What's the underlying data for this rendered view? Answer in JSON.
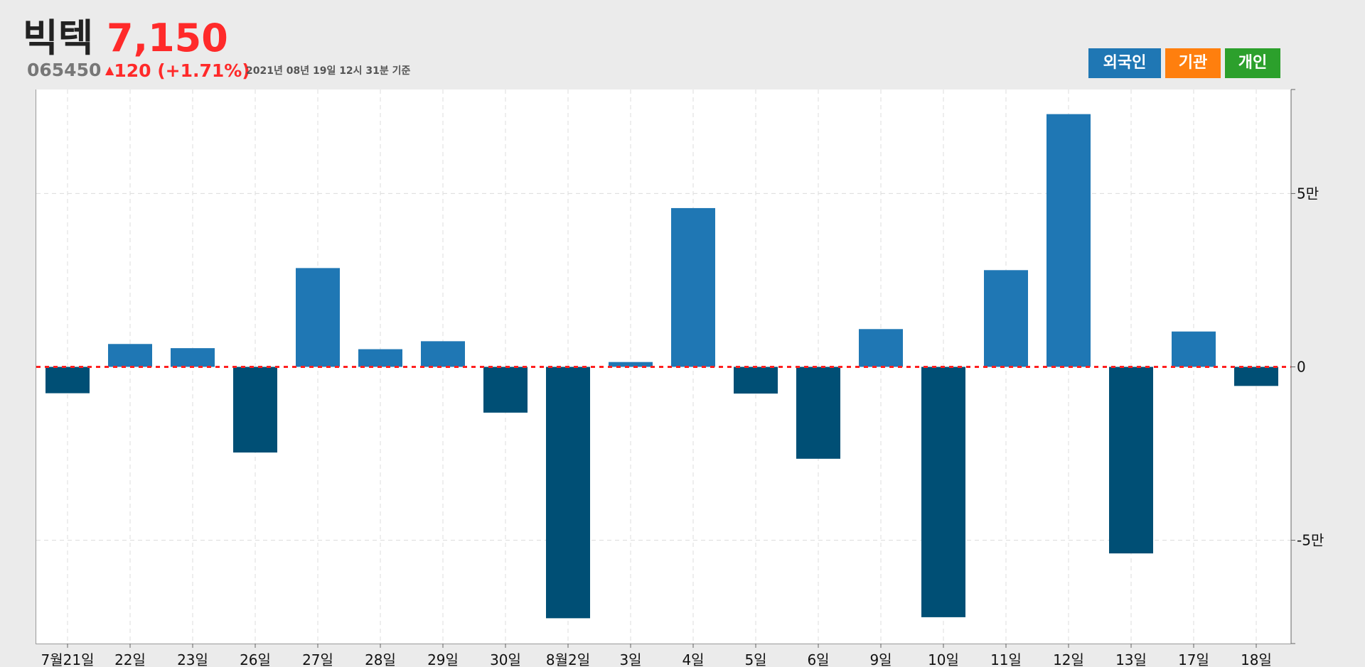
{
  "header": {
    "name": "빅텍",
    "price": "7,150",
    "code": "065450",
    "change": "120 (+1.71%)",
    "change_symbol": "▲",
    "timestamp": "2021년 08년 19일 12시 31분 기준"
  },
  "tabs": [
    {
      "label": "외국인",
      "color": "#1f77b4"
    },
    {
      "label": "기관",
      "color": "#ff7f0e"
    },
    {
      "label": "개인",
      "color": "#2ca02c"
    }
  ],
  "colors": {
    "positive_bar": "#1f77b4",
    "negative_bar": "#004f75",
    "zero_line": "#ff2020"
  },
  "chart_data": {
    "type": "bar",
    "categories": [
      "7월21일",
      "22일",
      "23일",
      "26일",
      "27일",
      "28일",
      "29일",
      "30일",
      "8월2일",
      "3일",
      "4일",
      "5일",
      "6일",
      "9일",
      "10일",
      "11일",
      "12일",
      "13일",
      "17일",
      "18일"
    ],
    "values": [
      -7600,
      6600,
      5400,
      -24700,
      28500,
      5100,
      7400,
      -13200,
      -72500,
      1400,
      45800,
      -7700,
      -26500,
      10900,
      -72200,
      27900,
      72900,
      -53800,
      10200,
      -5500
    ],
    "ylim": [
      -79800,
      80000
    ],
    "yticks": [
      -50000,
      0,
      50000
    ],
    "ytick_labels": [
      "-5만",
      "0",
      "5만"
    ],
    "grid": true
  }
}
